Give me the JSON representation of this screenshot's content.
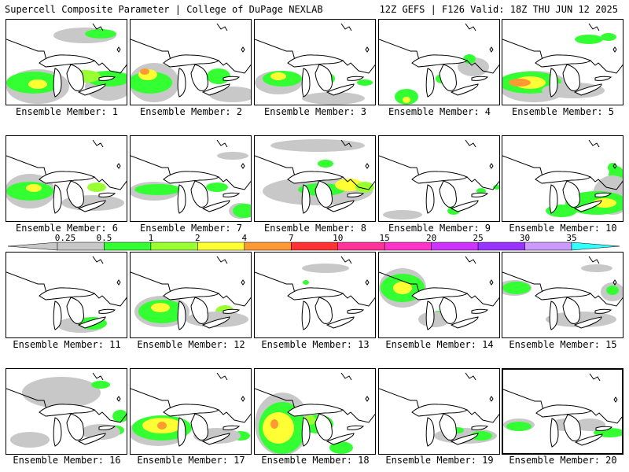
{
  "header": {
    "left_title": "Supercell Composite Parameter | College of DuPage NEXLAB",
    "right_title": "12Z GEFS | F126 Valid: 18Z THU JUN 12 2025"
  },
  "colorbar": {
    "ticks": [
      "0.25",
      "0.5",
      "1",
      "2",
      "4",
      "7",
      "10",
      "15",
      "20",
      "25",
      "30",
      "35"
    ],
    "colors": [
      "#c8c8c8",
      "#c8c8c8",
      "#33ff33",
      "#99ff33",
      "#ffff33",
      "#ff9933",
      "#ff3333",
      "#ff3399",
      "#ff33cc",
      "#cc33ff",
      "#9933ff",
      "#cc99ff",
      "#33ffff"
    ]
  },
  "field_colors": {
    "gray": "#c8c8c8",
    "green": "#33ff33",
    "lime": "#99ff33",
    "yellow": "#ffff33",
    "orange": "#ff9933",
    "red": "#ff3333"
  },
  "members": [
    {
      "label": "Ensemble Member: 1"
    },
    {
      "label": "Ensemble Member: 2"
    },
    {
      "label": "Ensemble Member: 3"
    },
    {
      "label": "Ensemble Member: 4"
    },
    {
      "label": "Ensemble Member: 5"
    },
    {
      "label": "Ensemble Member: 6"
    },
    {
      "label": "Ensemble Member: 7"
    },
    {
      "label": "Ensemble Member: 8"
    },
    {
      "label": "Ensemble Member: 9"
    },
    {
      "label": "Ensemble Member: 10"
    },
    {
      "label": "Ensemble Member: 11"
    },
    {
      "label": "Ensemble Member: 12"
    },
    {
      "label": "Ensemble Member: 13"
    },
    {
      "label": "Ensemble Member: 14"
    },
    {
      "label": "Ensemble Member: 15"
    },
    {
      "label": "Ensemble Member: 16"
    },
    {
      "label": "Ensemble Member: 17"
    },
    {
      "label": "Ensemble Member: 18"
    },
    {
      "label": "Ensemble Member: 19"
    },
    {
      "label": "Ensemble Member: 20",
      "selected": true
    }
  ]
}
